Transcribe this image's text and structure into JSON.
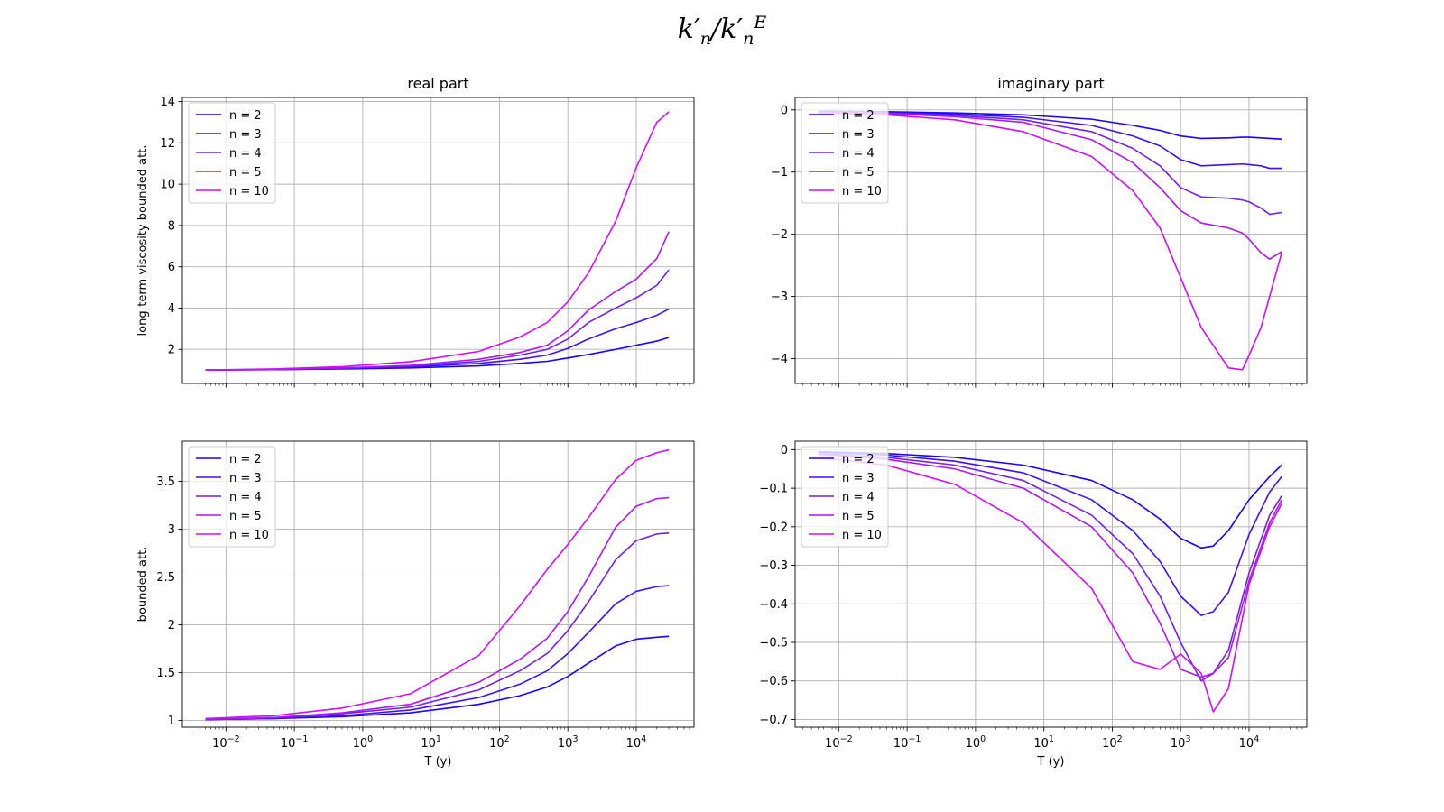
{
  "figure": {
    "suptitle": {
      "k": "k",
      "prime": "′",
      "sub": "n",
      "slash": "/",
      "sup": "E"
    }
  },
  "series_colors": [
    "#1a00ff",
    "#3d10f5",
    "#7020e8",
    "#a818f5",
    "#cc10ff"
  ],
  "legend_labels": [
    "n = 2",
    "n = 3",
    "n = 4",
    "n = 5",
    "n = 10"
  ],
  "chart_data": [
    {
      "id": "real-top",
      "type": "line",
      "xscale": "log",
      "title": "real part",
      "xlabel": "",
      "ylabel": "long-term viscosity bounded att.",
      "xlim": [
        0.0023,
        70000
      ],
      "ylim": [
        0.35,
        14.2
      ],
      "yticks": [
        2,
        4,
        6,
        8,
        10,
        12,
        14
      ],
      "grid": true,
      "legend": "upper-left",
      "show_xticklabels": false,
      "x": [
        0.005,
        0.05,
        0.5,
        5,
        50,
        200,
        500,
        1000,
        2000,
        5000,
        10000,
        20000,
        30000
      ],
      "series": [
        {
          "name": "n = 2",
          "values": [
            1.0,
            1.02,
            1.05,
            1.1,
            1.2,
            1.32,
            1.42,
            1.58,
            1.75,
            2.0,
            2.2,
            2.4,
            2.58
          ]
        },
        {
          "name": "n = 3",
          "values": [
            1.0,
            1.02,
            1.07,
            1.15,
            1.32,
            1.52,
            1.72,
            2.05,
            2.5,
            3.0,
            3.3,
            3.65,
            3.95
          ]
        },
        {
          "name": "n = 4",
          "values": [
            1.0,
            1.03,
            1.09,
            1.18,
            1.42,
            1.72,
            2.0,
            2.5,
            3.3,
            4.0,
            4.5,
            5.1,
            5.85
          ]
        },
        {
          "name": "n = 5",
          "values": [
            1.0,
            1.03,
            1.1,
            1.22,
            1.52,
            1.85,
            2.2,
            2.9,
            3.9,
            4.8,
            5.4,
            6.4,
            7.7
          ]
        },
        {
          "name": "n = 10",
          "values": [
            1.0,
            1.05,
            1.16,
            1.4,
            1.9,
            2.6,
            3.3,
            4.3,
            5.7,
            8.2,
            10.8,
            13.0,
            13.5
          ]
        }
      ]
    },
    {
      "id": "imag-top",
      "type": "line",
      "xscale": "log",
      "title": "imaginary part",
      "xlabel": "",
      "ylabel": "",
      "xlim": [
        0.0023,
        70000
      ],
      "ylim": [
        -4.4,
        0.2
      ],
      "yticks": [
        -4,
        -3,
        -2,
        -1,
        0
      ],
      "grid": true,
      "legend": "upper-left",
      "show_xticklabels": false,
      "x": [
        0.005,
        0.05,
        0.5,
        5,
        50,
        200,
        500,
        1000,
        2000,
        5000,
        8000,
        10000,
        15000,
        20000,
        30000
      ],
      "series": [
        {
          "name": "n = 2",
          "values": [
            -0.02,
            -0.03,
            -0.05,
            -0.08,
            -0.15,
            -0.25,
            -0.33,
            -0.42,
            -0.46,
            -0.45,
            -0.44,
            -0.44,
            -0.45,
            -0.46,
            -0.47
          ]
        },
        {
          "name": "n = 3",
          "values": [
            -0.03,
            -0.04,
            -0.07,
            -0.12,
            -0.25,
            -0.42,
            -0.58,
            -0.8,
            -0.9,
            -0.88,
            -0.87,
            -0.88,
            -0.9,
            -0.94,
            -0.94
          ]
        },
        {
          "name": "n = 4",
          "values": [
            -0.03,
            -0.05,
            -0.09,
            -0.16,
            -0.35,
            -0.62,
            -0.9,
            -1.25,
            -1.4,
            -1.42,
            -1.45,
            -1.48,
            -1.58,
            -1.68,
            -1.65
          ]
        },
        {
          "name": "n = 5",
          "values": [
            -0.04,
            -0.06,
            -0.11,
            -0.2,
            -0.48,
            -0.85,
            -1.25,
            -1.62,
            -1.82,
            -1.9,
            -1.98,
            -2.08,
            -2.3,
            -2.4,
            -2.28
          ]
        },
        {
          "name": "n = 10",
          "values": [
            -0.05,
            -0.08,
            -0.16,
            -0.35,
            -0.75,
            -1.3,
            -1.9,
            -2.7,
            -3.5,
            -4.15,
            -4.18,
            -3.95,
            -3.5,
            -3.0,
            -2.3
          ]
        }
      ]
    },
    {
      "id": "real-bottom",
      "type": "line",
      "xscale": "log",
      "title": "",
      "xlabel": "T (y)",
      "ylabel": "bounded att.",
      "xlim": [
        0.0023,
        70000
      ],
      "ylim": [
        0.93,
        3.92
      ],
      "yticks": [
        1.0,
        1.5,
        2.0,
        2.5,
        3.0,
        3.5
      ],
      "grid": true,
      "legend": "upper-left",
      "show_xticklabels": true,
      "x": [
        0.005,
        0.05,
        0.5,
        5,
        50,
        200,
        500,
        1000,
        2000,
        5000,
        10000,
        20000,
        30000
      ],
      "series": [
        {
          "name": "n = 2",
          "values": [
            1.01,
            1.02,
            1.04,
            1.08,
            1.17,
            1.26,
            1.35,
            1.46,
            1.6,
            1.78,
            1.85,
            1.87,
            1.88
          ]
        },
        {
          "name": "n = 3",
          "values": [
            1.01,
            1.02,
            1.05,
            1.11,
            1.24,
            1.38,
            1.52,
            1.7,
            1.92,
            2.22,
            2.35,
            2.4,
            2.41
          ]
        },
        {
          "name": "n = 4",
          "values": [
            1.01,
            1.03,
            1.07,
            1.14,
            1.32,
            1.52,
            1.7,
            1.94,
            2.24,
            2.68,
            2.88,
            2.95,
            2.96
          ]
        },
        {
          "name": "n = 5",
          "values": [
            1.01,
            1.03,
            1.08,
            1.17,
            1.4,
            1.64,
            1.86,
            2.14,
            2.5,
            3.02,
            3.24,
            3.32,
            3.33
          ]
        },
        {
          "name": "n = 10",
          "values": [
            1.02,
            1.05,
            1.13,
            1.28,
            1.68,
            2.2,
            2.58,
            2.84,
            3.12,
            3.52,
            3.72,
            3.8,
            3.83
          ]
        }
      ]
    },
    {
      "id": "imag-bottom",
      "type": "line",
      "xscale": "log",
      "title": "",
      "xlabel": "T (y)",
      "ylabel": "",
      "xlim": [
        0.0023,
        70000
      ],
      "ylim": [
        -0.72,
        0.022
      ],
      "yticks": [
        -0.7,
        -0.6,
        -0.5,
        -0.4,
        -0.3,
        -0.2,
        -0.1,
        0.0
      ],
      "grid": true,
      "legend": "upper-left",
      "show_xticklabels": true,
      "x": [
        0.005,
        0.05,
        0.5,
        5,
        50,
        200,
        500,
        1000,
        2000,
        3000,
        5000,
        10000,
        20000,
        30000
      ],
      "series": [
        {
          "name": "n = 2",
          "values": [
            -0.005,
            -0.01,
            -0.02,
            -0.04,
            -0.08,
            -0.13,
            -0.18,
            -0.23,
            -0.255,
            -0.25,
            -0.21,
            -0.13,
            -0.07,
            -0.04
          ]
        },
        {
          "name": "n = 3",
          "values": [
            -0.007,
            -0.014,
            -0.03,
            -0.06,
            -0.13,
            -0.21,
            -0.29,
            -0.38,
            -0.43,
            -0.42,
            -0.37,
            -0.22,
            -0.11,
            -0.07
          ]
        },
        {
          "name": "n = 4",
          "values": [
            -0.01,
            -0.02,
            -0.04,
            -0.08,
            -0.17,
            -0.27,
            -0.38,
            -0.5,
            -0.6,
            -0.58,
            -0.52,
            -0.32,
            -0.17,
            -0.12
          ]
        },
        {
          "name": "n = 5",
          "values": [
            -0.012,
            -0.025,
            -0.05,
            -0.1,
            -0.2,
            -0.32,
            -0.45,
            -0.57,
            -0.59,
            -0.58,
            -0.54,
            -0.34,
            -0.19,
            -0.13
          ]
        },
        {
          "name": "n = 10",
          "values": [
            -0.02,
            -0.04,
            -0.09,
            -0.19,
            -0.36,
            -0.55,
            -0.57,
            -0.53,
            -0.58,
            -0.68,
            -0.62,
            -0.35,
            -0.2,
            -0.14
          ]
        }
      ]
    }
  ]
}
